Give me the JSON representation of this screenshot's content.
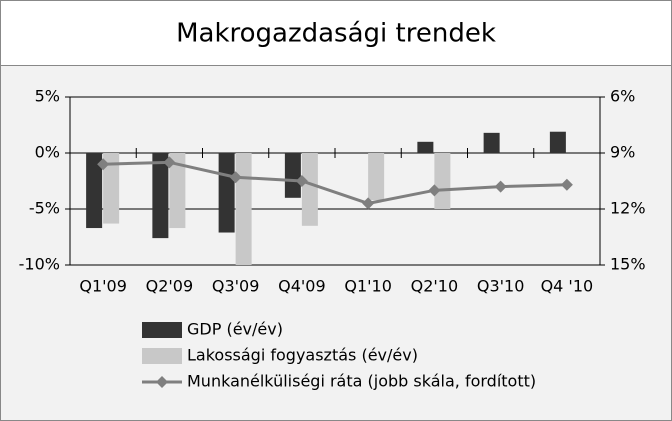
{
  "chart_data": {
    "type": "bar_line",
    "title": "Makrogazdasági trendek",
    "categories": [
      "Q1'09",
      "Q2'09",
      "Q3'09",
      "Q4'09",
      "Q1'10",
      "Q2'10",
      "Q3'10",
      "Q4 '10"
    ],
    "series": [
      {
        "name": "GDP (év/év)",
        "color": "#333333",
        "type": "bar",
        "values": [
          -6.7,
          -7.6,
          -7.1,
          -4.0,
          null,
          1.0,
          1.8,
          1.9
        ]
      },
      {
        "name": "Lakossági fogyasztás (év/év)",
        "color": "#c8c8c8",
        "type": "bar",
        "values": [
          -6.3,
          -6.7,
          -10.0,
          -6.5,
          -4.2,
          -5.0,
          null,
          null
        ]
      },
      {
        "name": "Munkanélküliségi ráta (jobb skála, fordított)",
        "color": "#7f7f7f",
        "type": "line",
        "axis": "y2",
        "values": [
          9.6,
          9.5,
          10.3,
          10.5,
          11.7,
          11.0,
          10.8,
          10.7
        ]
      }
    ],
    "ylim": [
      -10,
      5
    ],
    "yticks": [
      {
        "value": -10,
        "label": "-10%"
      },
      {
        "value": -5,
        "label": "-5%"
      },
      {
        "value": 0,
        "label": "0%"
      },
      {
        "value": 5,
        "label": "5%"
      }
    ],
    "y2lim": [
      15,
      6
    ],
    "y2_reversed": true,
    "y2ticks": [
      {
        "value": 15,
        "label": "15%"
      },
      {
        "value": 12,
        "label": "12%"
      },
      {
        "value": 9,
        "label": "9%"
      },
      {
        "value": 6,
        "label": "6%"
      }
    ],
    "grid": true
  }
}
